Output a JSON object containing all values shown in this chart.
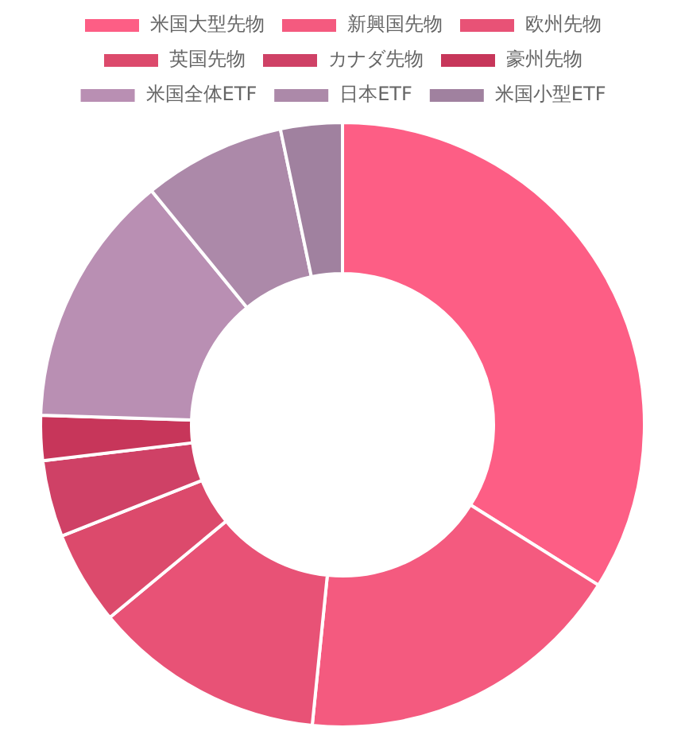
{
  "chart_data": {
    "type": "donut",
    "categories": [
      "米国大型先物",
      "新興国先物",
      "欧州先物",
      "英国先物",
      "カナダ先物",
      "豪州先物",
      "米国全体ETF",
      "日本ETF",
      "米国小型ETF"
    ],
    "values": [
      33.9,
      17.7,
      12.4,
      5.0,
      4.1,
      2.4,
      13.6,
      7.6,
      3.3
    ],
    "colors": [
      "#fd5e85",
      "#f45a7f",
      "#e85276",
      "#dc4a6c",
      "#cf4166",
      "#c7365a",
      "#b98fb3",
      "#ac89a9",
      "#a0819f"
    ],
    "legend": "top"
  }
}
